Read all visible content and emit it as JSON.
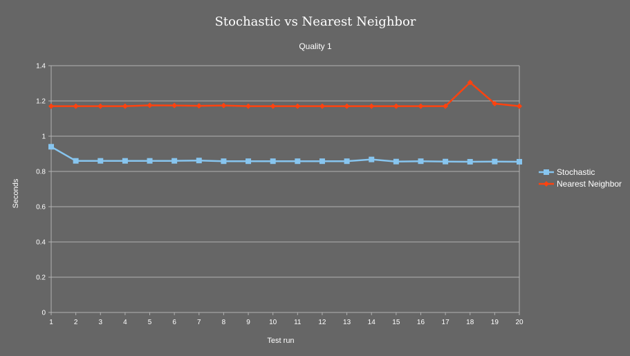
{
  "chart_data": {
    "type": "line",
    "title": "Stochastic vs Nearest Neighbor",
    "subtitle": "Quality 1",
    "xlabel": "Test run",
    "ylabel": "Seconds",
    "x": [
      1,
      2,
      3,
      4,
      5,
      6,
      7,
      8,
      9,
      10,
      11,
      12,
      13,
      14,
      15,
      16,
      17,
      18,
      19,
      20
    ],
    "x_tick_labels": [
      "1",
      "2",
      "3",
      "4",
      "5",
      "6",
      "7",
      "8",
      "9",
      "10",
      "11",
      "12",
      "13",
      "14",
      "15",
      "16",
      "17",
      "18",
      "19",
      "20"
    ],
    "y_tick_labels": [
      "0",
      "0.2",
      "0.4",
      "0.6",
      "0.8",
      "1",
      "1.2",
      "1.4"
    ],
    "y_ticks": [
      0,
      0.2,
      0.4,
      0.6,
      0.8,
      1.0,
      1.2,
      1.4
    ],
    "ylim": [
      0,
      1.4
    ],
    "grid": true,
    "legend_position": "right",
    "series": [
      {
        "name": "Stochastic",
        "color": "#87c5ef",
        "marker": "square",
        "values": [
          0.94,
          0.86,
          0.86,
          0.86,
          0.86,
          0.86,
          0.862,
          0.858,
          0.858,
          0.858,
          0.858,
          0.858,
          0.858,
          0.868,
          0.856,
          0.858,
          0.856,
          0.855,
          0.856,
          0.855
        ]
      },
      {
        "name": "Nearest Neighbor",
        "color": "#ff420e",
        "marker": "diamond",
        "values": [
          1.17,
          1.17,
          1.17,
          1.17,
          1.175,
          1.174,
          1.172,
          1.174,
          1.17,
          1.17,
          1.17,
          1.17,
          1.17,
          1.17,
          1.17,
          1.17,
          1.17,
          1.305,
          1.185,
          1.17
        ]
      }
    ]
  }
}
